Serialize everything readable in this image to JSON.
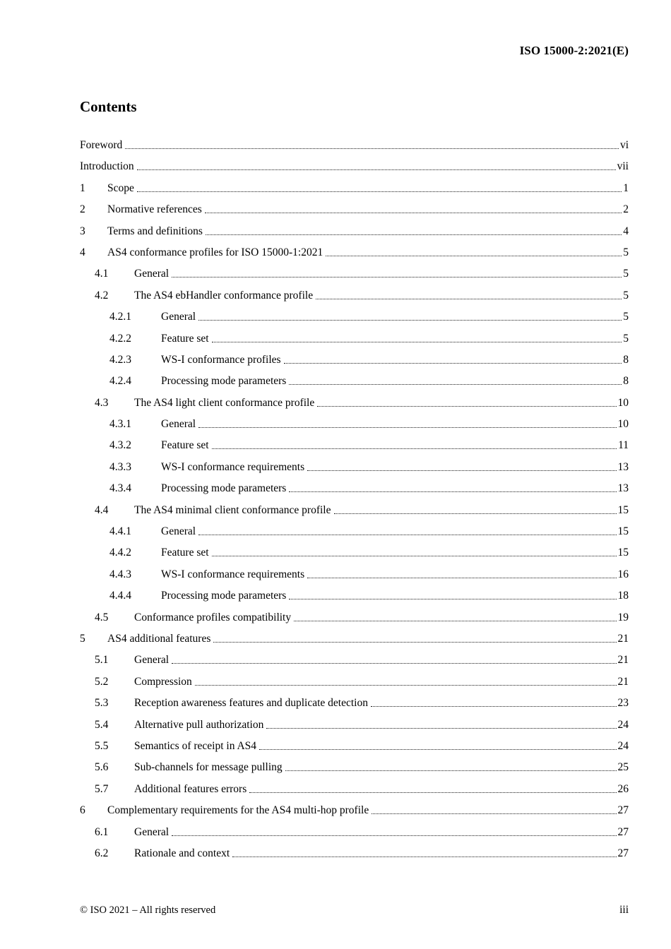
{
  "header": {
    "doc_ref": "ISO 15000-2:2021(E)"
  },
  "contents": {
    "title": "Contents"
  },
  "toc": [
    {
      "num": "",
      "label": "Foreword",
      "page": "vi",
      "level": 0
    },
    {
      "num": "",
      "label": "Introduction",
      "page": "vii",
      "level": 0
    },
    {
      "num": "1",
      "label": "Scope",
      "page": "1",
      "level": 1
    },
    {
      "num": "2",
      "label": "Normative references",
      "page": "2",
      "level": 1
    },
    {
      "num": "3",
      "label": "Terms and definitions",
      "page": "4",
      "level": 1
    },
    {
      "num": "4",
      "label": "AS4 conformance profiles for ISO 15000-1:2021",
      "page": "5",
      "level": 1
    },
    {
      "num": "4.1",
      "label": "General",
      "page": "5",
      "level": 2
    },
    {
      "num": "4.2",
      "label": "The AS4 ebHandler conformance profile",
      "page": "5",
      "level": 2
    },
    {
      "num": "4.2.1",
      "label": "General",
      "page": "5",
      "level": 3
    },
    {
      "num": "4.2.2",
      "label": "Feature set",
      "page": "5",
      "level": 3
    },
    {
      "num": "4.2.3",
      "label": "WS-I conformance profiles",
      "page": "8",
      "level": 3
    },
    {
      "num": "4.2.4",
      "label": "Processing mode parameters",
      "page": "8",
      "level": 3
    },
    {
      "num": "4.3",
      "label": "The AS4 light client conformance profile",
      "page": "10",
      "level": 2
    },
    {
      "num": "4.3.1",
      "label": "General",
      "page": "10",
      "level": 3
    },
    {
      "num": "4.3.2",
      "label": "Feature set",
      "page": "11",
      "level": 3
    },
    {
      "num": "4.3.3",
      "label": "WS-I conformance requirements",
      "page": "13",
      "level": 3
    },
    {
      "num": "4.3.4",
      "label": "Processing mode parameters",
      "page": "13",
      "level": 3
    },
    {
      "num": "4.4",
      "label": "The AS4 minimal client conformance profile",
      "page": "15",
      "level": 2
    },
    {
      "num": "4.4.1",
      "label": "General",
      "page": "15",
      "level": 3
    },
    {
      "num": "4.4.2",
      "label": "Feature set",
      "page": "15",
      "level": 3
    },
    {
      "num": "4.4.3",
      "label": "WS-I conformance requirements",
      "page": "16",
      "level": 3
    },
    {
      "num": "4.4.4",
      "label": "Processing mode parameters",
      "page": "18",
      "level": 3
    },
    {
      "num": "4.5",
      "label": "Conformance profiles compatibility",
      "page": "19",
      "level": 2
    },
    {
      "num": "5",
      "label": "AS4 additional features",
      "page": "21",
      "level": 1
    },
    {
      "num": "5.1",
      "label": "General",
      "page": "21",
      "level": 2
    },
    {
      "num": "5.2",
      "label": "Compression",
      "page": "21",
      "level": 2
    },
    {
      "num": "5.3",
      "label": "Reception awareness features and duplicate detection",
      "page": "23",
      "level": 2
    },
    {
      "num": "5.4",
      "label": "Alternative pull authorization",
      "page": "24",
      "level": 2
    },
    {
      "num": "5.5",
      "label": "Semantics of receipt in AS4",
      "page": "24",
      "level": 2
    },
    {
      "num": "5.6",
      "label": "Sub-channels for message pulling",
      "page": "25",
      "level": 2
    },
    {
      "num": "5.7",
      "label": "Additional features errors",
      "page": "26",
      "level": 2
    },
    {
      "num": "6",
      "label": "Complementary requirements for the AS4 multi-hop profile",
      "page": "27",
      "level": 1
    },
    {
      "num": "6.1",
      "label": "General",
      "page": "27",
      "level": 2
    },
    {
      "num": "6.2",
      "label": "Rationale and context",
      "page": "27",
      "level": 2
    }
  ],
  "footer": {
    "copyright": "© ISO 2021 – All rights reserved",
    "page_number": "iii"
  }
}
